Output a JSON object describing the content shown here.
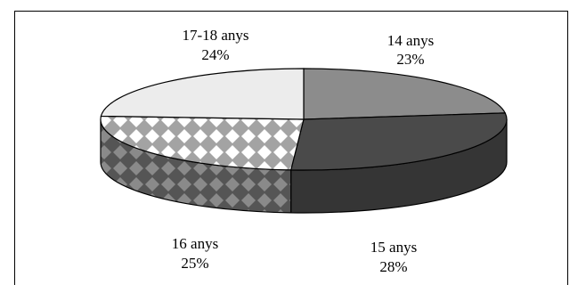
{
  "chart_data": {
    "type": "pie",
    "style": "3d",
    "title": "",
    "slices": [
      {
        "label": "14 anys",
        "value": 23,
        "display": "23%",
        "color": "#8c8c8c"
      },
      {
        "label": "15 anys",
        "value": 28,
        "display": "28%",
        "color": "#4a4a4a"
      },
      {
        "label": "16 anys",
        "value": 25,
        "display": "25%",
        "color": "#9a9a9a",
        "pattern": "diamond"
      },
      {
        "label": "17-18 anys",
        "value": 24,
        "display": "24%",
        "color": "#ececec"
      }
    ],
    "legend": "none"
  }
}
